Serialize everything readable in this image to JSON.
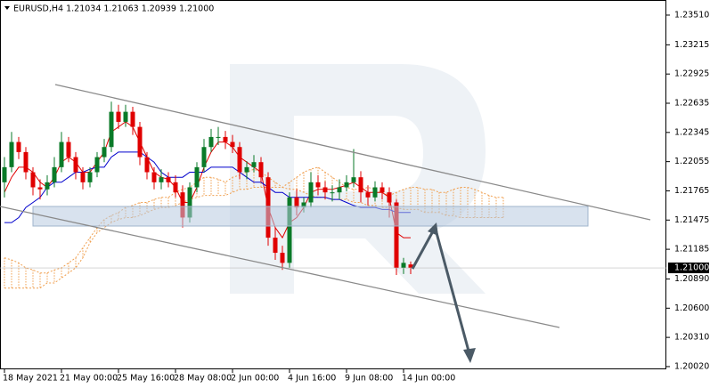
{
  "chart_data": {
    "type": "candlestick",
    "title": "EURUSD,H4  1.21034 1.21063 1.20939 1.21000",
    "x": [
      "18 May 2021",
      null,
      null,
      null,
      null,
      null,
      null,
      null,
      "21 May 00:00",
      null,
      null,
      null,
      null,
      null,
      null,
      null,
      "25 May 16:00",
      null,
      null,
      null,
      null,
      null,
      null,
      null,
      "28 May 08:00",
      null,
      null,
      null,
      null,
      null,
      null,
      null,
      "2 Jun 00:00",
      null,
      null,
      null,
      null,
      null,
      null,
      null,
      "4 Jun 16:00",
      null,
      null,
      null,
      null,
      null,
      null,
      null,
      "9 Jun 08:00",
      null,
      null,
      null,
      null,
      null,
      null,
      null,
      "14 Jun 00:00",
      null,
      null,
      null,
      null,
      null,
      null,
      null,
      null,
      null,
      null,
      null,
      null,
      null,
      null
    ],
    "open": [
      1.2185,
      1.22,
      1.2225,
      1.2215,
      1.2195,
      1.218,
      1.2178,
      1.2185,
      1.22,
      1.2225,
      1.221,
      1.2195,
      1.2185,
      1.2195,
      1.221,
      1.222,
      1.2255,
      1.2245,
      1.2255,
      1.224,
      1.221,
      1.2195,
      1.2185,
      1.219,
      1.2185,
      1.2175,
      1.215,
      1.218,
      1.22,
      1.222,
      1.223,
      1.223,
      1.2225,
      1.222,
      1.2195,
      1.22,
      1.2205,
      1.219,
      1.213,
      1.2115,
      1.2105,
      1.217,
      1.216,
      1.2165,
      1.2185,
      1.218,
      1.2175,
      1.2175,
      1.218,
      1.2185,
      1.219,
      1.2175,
      1.217,
      1.218,
      1.2175,
      1.2165,
      1.21,
      1.21034,
      null,
      null,
      null,
      null,
      null,
      null,
      null,
      null,
      null,
      null,
      null,
      null,
      null
    ],
    "high": [
      1.221,
      1.2235,
      1.223,
      1.222,
      1.22,
      1.2188,
      1.2192,
      1.221,
      1.2235,
      1.223,
      1.2215,
      1.22,
      1.22,
      1.2215,
      1.2228,
      1.2265,
      1.2262,
      1.2262,
      1.226,
      1.2245,
      1.2215,
      1.22,
      1.2198,
      1.2195,
      1.2192,
      1.2182,
      1.2185,
      1.2205,
      1.2228,
      1.2238,
      1.224,
      1.2236,
      1.2232,
      1.2225,
      1.2206,
      1.2212,
      1.221,
      1.2195,
      1.214,
      1.2122,
      1.2175,
      1.2178,
      1.217,
      1.2195,
      1.2192,
      1.2186,
      1.2182,
      1.2188,
      1.2192,
      1.2218,
      1.2196,
      1.2182,
      1.2186,
      1.2185,
      1.218,
      1.2168,
      1.211,
      1.21063,
      null,
      null,
      null,
      null,
      null,
      null,
      null,
      null,
      null,
      null,
      null,
      null,
      null
    ],
    "low": [
      1.217,
      1.2195,
      1.2208,
      1.2188,
      1.2172,
      1.2168,
      1.2172,
      1.218,
      1.2195,
      1.2205,
      1.2188,
      1.2178,
      1.218,
      1.219,
      1.2205,
      1.2215,
      1.2238,
      1.224,
      1.2232,
      1.2202,
      1.2188,
      1.2178,
      1.2178,
      1.218,
      1.217,
      1.214,
      1.2145,
      1.2175,
      1.2195,
      1.2215,
      1.2222,
      1.2218,
      1.2214,
      1.2188,
      1.2188,
      1.2195,
      1.2185,
      1.2122,
      1.2108,
      1.2098,
      1.21,
      1.2152,
      1.2155,
      1.216,
      1.2172,
      1.2168,
      1.2166,
      1.2168,
      1.2176,
      1.218,
      1.2165,
      1.2162,
      1.2166,
      1.2168,
      1.215,
      1.2093,
      1.2094,
      1.20939,
      null,
      null,
      null,
      null,
      null,
      null,
      null,
      null,
      null,
      null,
      null,
      null,
      null
    ],
    "close": [
      1.22,
      1.2225,
      1.2215,
      1.2195,
      1.218,
      1.2178,
      1.2185,
      1.22,
      1.2225,
      1.221,
      1.2195,
      1.2185,
      1.2195,
      1.221,
      1.222,
      1.2255,
      1.2245,
      1.2255,
      1.224,
      1.221,
      1.2195,
      1.2185,
      1.219,
      1.2185,
      1.2175,
      1.215,
      1.218,
      1.22,
      1.222,
      1.223,
      1.223,
      1.2225,
      1.222,
      1.2195,
      1.22,
      1.2205,
      1.219,
      1.213,
      1.2115,
      1.2105,
      1.217,
      1.216,
      1.2165,
      1.2185,
      1.218,
      1.2175,
      1.2175,
      1.218,
      1.2185,
      1.219,
      1.2175,
      1.217,
      1.218,
      1.2175,
      1.2165,
      1.21,
      1.2105,
      1.21,
      null,
      null,
      null,
      null,
      null,
      null,
      null,
      null,
      null,
      null,
      null,
      null,
      null
    ],
    "up_color": "#0a7a28",
    "down_color": "#e00000",
    "overlays": [
      {
        "color": "#e00000",
        "values": [
          1.2175,
          1.219,
          1.22,
          1.22,
          1.2195,
          1.2185,
          1.218,
          1.219,
          1.2205,
          1.221,
          1.2205,
          1.2195,
          1.2195,
          1.2205,
          1.2215,
          1.2235,
          1.224,
          1.2245,
          1.224,
          1.2225,
          1.221,
          1.2195,
          1.219,
          1.2188,
          1.218,
          1.2165,
          1.2165,
          1.218,
          1.22,
          1.2215,
          1.2225,
          1.2225,
          1.222,
          1.221,
          1.2205,
          1.22,
          1.2195,
          1.216,
          1.214,
          1.213,
          1.2145,
          1.215,
          1.216,
          1.2175,
          1.2178,
          1.2178,
          1.2178,
          1.218,
          1.2182,
          1.2185,
          1.218,
          1.2175,
          1.2175,
          1.2175,
          1.217,
          1.2135,
          1.213,
          1.213,
          null,
          null,
          null,
          null,
          null,
          null,
          null,
          null,
          null,
          null,
          null,
          null,
          null
        ]
      },
      {
        "color": "#0000cc",
        "values": [
          1.2145,
          1.2145,
          1.215,
          1.216,
          1.2165,
          1.217,
          1.218,
          1.2185,
          1.2185,
          1.219,
          1.2195,
          1.2195,
          1.2198,
          1.22,
          1.22,
          1.221,
          1.2215,
          1.2215,
          1.2215,
          1.2215,
          1.221,
          1.2205,
          1.2195,
          1.219,
          1.219,
          1.219,
          1.2195,
          1.2195,
          1.2195,
          1.22,
          1.22,
          1.22,
          1.22,
          1.2195,
          1.219,
          1.2185,
          1.2185,
          1.218,
          1.2175,
          1.2175,
          1.217,
          1.217,
          1.217,
          1.217,
          1.217,
          1.217,
          1.2168,
          1.2168,
          1.2165,
          1.2162,
          1.216,
          1.216,
          1.216,
          1.2158,
          1.2158,
          1.2155,
          1.2155,
          1.2155,
          null,
          null,
          null,
          null,
          null,
          null,
          null,
          null,
          null,
          null,
          null,
          null,
          null
        ]
      }
    ],
    "cloud": {
      "color": "#f0a050",
      "upper": [
        1.211,
        1.2108,
        1.2105,
        1.21,
        1.2098,
        1.2095,
        1.2095,
        1.2098,
        1.21,
        1.2105,
        1.211,
        1.212,
        1.213,
        1.214,
        1.2148,
        1.2152,
        1.2155,
        1.216,
        1.2162,
        1.2165,
        1.2165,
        1.2168,
        1.217,
        1.217,
        1.2175,
        1.2178,
        1.218,
        1.2185,
        1.219,
        1.219,
        1.2188,
        1.2185,
        1.219,
        1.2192,
        1.2195,
        1.2198,
        1.2195,
        1.219,
        1.2185,
        1.218,
        1.2185,
        1.219,
        1.2195,
        1.2198,
        1.22,
        1.2195,
        1.219,
        1.2185,
        1.218,
        1.2178,
        1.2178,
        1.218,
        1.2178,
        1.2175,
        1.2172,
        1.2175,
        1.2178,
        1.218,
        1.218,
        1.2178,
        1.2178,
        1.2175,
        1.2175,
        1.2178,
        1.218,
        1.218,
        1.2178,
        1.2175,
        1.2172,
        1.217,
        1.217
      ],
      "lower": [
        1.208,
        1.208,
        1.208,
        1.208,
        1.208,
        1.208,
        1.2085,
        1.2085,
        1.209,
        1.2095,
        1.21,
        1.211,
        1.2125,
        1.2135,
        1.214,
        1.2145,
        1.2148,
        1.215,
        1.215,
        1.2152,
        1.2155,
        1.2158,
        1.216,
        1.216,
        1.2162,
        1.2165,
        1.2168,
        1.217,
        1.2172,
        1.2172,
        1.2172,
        1.2172,
        1.2175,
        1.2178,
        1.2178,
        1.218,
        1.218,
        1.218,
        1.218,
        1.218,
        1.2178,
        1.2178,
        1.2175,
        1.2172,
        1.217,
        1.217,
        1.2168,
        1.2168,
        1.2168,
        1.2165,
        1.2165,
        1.2162,
        1.2162,
        1.216,
        1.216,
        1.216,
        1.2158,
        1.2158,
        1.2158,
        1.2155,
        1.2155,
        1.2155,
        1.2152,
        1.2152,
        1.215,
        1.215,
        1.215,
        1.215,
        1.215,
        1.215,
        1.215
      ]
    },
    "ylim": [
      1.19993,
      1.2366
    ],
    "yticks": [
      {
        "value": 1.2351,
        "label": "1.23510"
      },
      {
        "value": 1.23215,
        "label": "1.23215"
      },
      {
        "value": 1.22925,
        "label": "1.22925"
      },
      {
        "value": 1.22635,
        "label": "1.22635"
      },
      {
        "value": 1.22345,
        "label": "1.22345"
      },
      {
        "value": 1.22055,
        "label": "1.22055"
      },
      {
        "value": 1.21765,
        "label": "1.21765"
      },
      {
        "value": 1.21475,
        "label": "1.21475"
      },
      {
        "value": 1.21185,
        "label": "1.21185"
      },
      {
        "value": 1.2089,
        "label": "1.20890"
      },
      {
        "value": 1.206,
        "label": "1.20600"
      },
      {
        "value": 1.2031,
        "label": "1.20310"
      },
      {
        "value": 1.2002,
        "label": "1.20020"
      }
    ],
    "current_price": {
      "value": 1.21,
      "label": "1.21000"
    }
  }
}
